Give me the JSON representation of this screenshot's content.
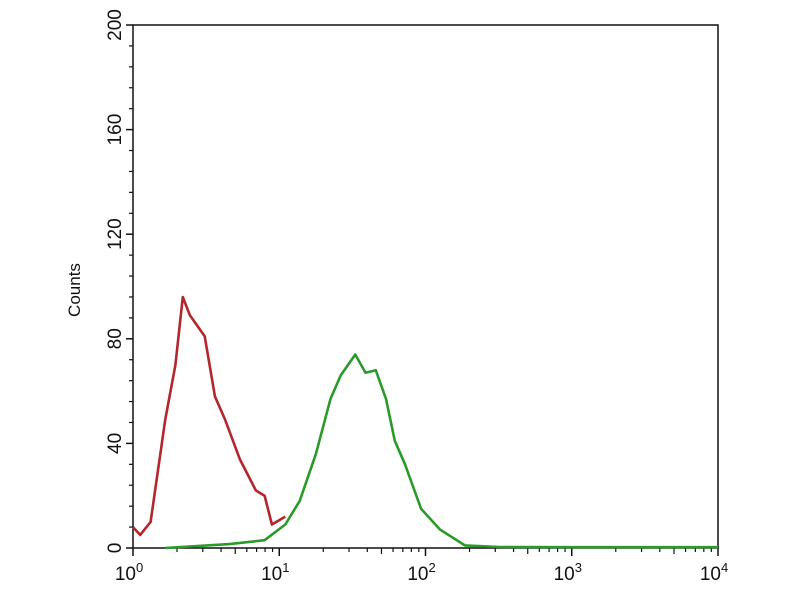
{
  "chart_data": {
    "type": "line",
    "title": "",
    "xlabel": "",
    "ylabel": "Counts",
    "xscale": "log",
    "xlim": [
      1,
      10000
    ],
    "ylim": [
      0,
      200
    ],
    "grid": false,
    "x_ticks": [
      {
        "base": "10",
        "exp": "0"
      },
      {
        "base": "10",
        "exp": "1"
      },
      {
        "base": "10",
        "exp": "2"
      },
      {
        "base": "10",
        "exp": "3"
      },
      {
        "base": "10",
        "exp": "4"
      }
    ],
    "y_ticks": [
      "0",
      "40",
      "80",
      "120",
      "160",
      "200"
    ],
    "series": [
      {
        "color": "#b3262b",
        "x": [
          1.0,
          1.12,
          1.32,
          1.66,
          1.95,
          2.19,
          2.45,
          3.09,
          3.63,
          4.27,
          5.37,
          6.92,
          7.94,
          8.91,
          11.0
        ],
        "y": [
          8,
          5,
          10,
          49,
          70,
          96,
          89,
          81,
          58,
          49,
          34,
          22,
          20,
          9,
          12
        ]
      },
      {
        "color": "#2a9a2a",
        "x": [
          1.66,
          4.57,
          7.94,
          11.0,
          13.8,
          17.8,
          22.4,
          26.3,
          33.1,
          38.9,
          45.7,
          53.7,
          61.7,
          72.4,
          93.3,
          126,
          186,
          324,
          1000,
          10000
        ],
        "y": [
          0,
          1.5,
          3,
          9,
          18,
          36,
          57,
          66,
          74,
          67,
          68,
          57,
          41,
          32,
          15,
          7,
          1,
          0.4,
          0.3,
          0.3
        ]
      }
    ]
  }
}
